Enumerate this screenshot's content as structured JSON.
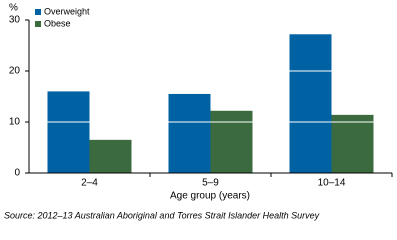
{
  "chart_data": {
    "type": "bar",
    "y_label": "%",
    "x_label": "Age group (years)",
    "source": "Source: 2012–13 Australian Aboriginal and Torres Strait Islander Health Survey",
    "categories": [
      "2–4",
      "5–9",
      "10–14"
    ],
    "series": [
      {
        "name": "Overweight",
        "color": "#0061a3",
        "values": [
          16,
          15.5,
          27.2
        ]
      },
      {
        "name": "Obese",
        "color": "#3b6a3e",
        "values": [
          6.5,
          12.2,
          11.4
        ]
      }
    ],
    "ylim": [
      0,
      30
    ],
    "yticks": [
      0,
      10,
      20,
      30
    ],
    "grid": true,
    "legend": "top-left"
  }
}
